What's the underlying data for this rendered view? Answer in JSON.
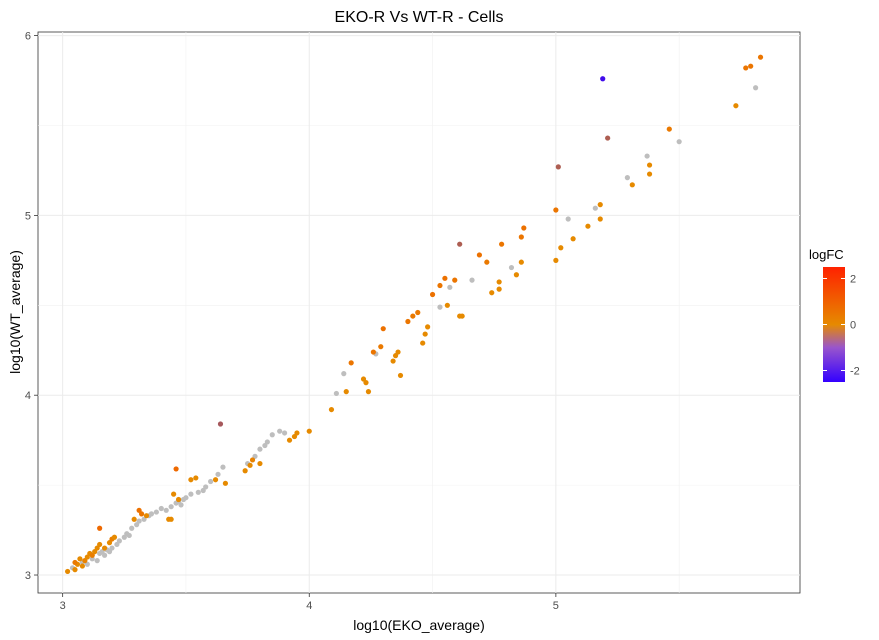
{
  "chart_data": {
    "type": "scatter",
    "title": "EKO-R Vs WT-R - Cells",
    "xlabel": "log10(EKO_average)",
    "ylabel": "log10(WT_average)",
    "xlim": [
      2.9,
      5.99
    ],
    "ylim": [
      2.9,
      6.02
    ],
    "x_ticks": [
      3,
      4,
      5
    ],
    "y_ticks": [
      3,
      4,
      5,
      6
    ],
    "x_tick_labels": [
      "3",
      "4",
      "5"
    ],
    "y_tick_labels": [
      "3",
      "4",
      "5",
      "6"
    ],
    "grid": true,
    "legend": {
      "title": "logFC",
      "placement": "right",
      "labels": [
        "2",
        "0",
        "-2"
      ],
      "values": [
        2,
        0,
        -2
      ],
      "range": [
        -2.5,
        2.5
      ],
      "colors": [
        "#3300ff",
        "#e68a00",
        "#ff2200"
      ]
    },
    "nonsignificant_color": "#bebebe",
    "points": [
      {
        "x": 3.02,
        "y": 3.02,
        "c": 0
      },
      {
        "x": 3.05,
        "y": 3.03,
        "c": 0
      },
      {
        "x": 3.06,
        "y": 3.06,
        "c": 0
      },
      {
        "x": 3.08,
        "y": 3.05,
        "c": 0
      },
      {
        "x": 3.09,
        "y": 3.08,
        "c": 0.2
      },
      {
        "x": 3.1,
        "y": 3.1,
        "c": 0
      },
      {
        "x": 3.11,
        "y": 3.12,
        "c": 0
      },
      {
        "x": 3.12,
        "y": 3.11,
        "c": 0.3
      },
      {
        "x": 3.13,
        "y": 3.13,
        "c": 0
      },
      {
        "x": 3.14,
        "y": 3.15,
        "c": 0
      },
      {
        "x": 3.05,
        "y": 3.07,
        "c": 0.4
      },
      {
        "x": 3.07,
        "y": 3.09,
        "c": 0
      },
      {
        "x": 3.15,
        "y": 3.26,
        "c": 0.8
      },
      {
        "x": 3.15,
        "y": 3.17,
        "c": 0
      },
      {
        "x": 3.17,
        "y": 3.15,
        "c": 0
      },
      {
        "x": 3.19,
        "y": 3.18,
        "c": 0
      },
      {
        "x": 3.2,
        "y": 3.2,
        "c": 0.3
      },
      {
        "x": 3.21,
        "y": 3.21,
        "c": 0
      },
      {
        "x": 3.29,
        "y": 3.31,
        "c": 0
      },
      {
        "x": 3.31,
        "y": 3.36,
        "c": 0.6
      },
      {
        "x": 3.32,
        "y": 3.34,
        "c": 0.5
      },
      {
        "x": 3.34,
        "y": 3.33,
        "c": 0
      },
      {
        "x": 3.43,
        "y": 3.31,
        "c": 0
      },
      {
        "x": 3.44,
        "y": 3.31,
        "c": 0
      },
      {
        "x": 3.45,
        "y": 3.45,
        "c": 0
      },
      {
        "x": 3.46,
        "y": 3.59,
        "c": 0.8
      },
      {
        "x": 3.47,
        "y": 3.42,
        "c": 0
      },
      {
        "x": 3.52,
        "y": 3.53,
        "c": 0
      },
      {
        "x": 3.54,
        "y": 3.54,
        "c": 0
      },
      {
        "x": 3.62,
        "y": 3.53,
        "c": 0
      },
      {
        "x": 3.64,
        "y": 3.84,
        "c": -0.9
      },
      {
        "x": 3.66,
        "y": 3.51,
        "c": 0
      },
      {
        "x": 3.74,
        "y": 3.58,
        "c": 0
      },
      {
        "x": 3.76,
        "y": 3.61,
        "c": 0
      },
      {
        "x": 3.77,
        "y": 3.64,
        "c": 0.2
      },
      {
        "x": 3.8,
        "y": 3.62,
        "c": 0
      },
      {
        "x": 3.92,
        "y": 3.75,
        "c": 0
      },
      {
        "x": 3.94,
        "y": 3.77,
        "c": 0
      },
      {
        "x": 3.95,
        "y": 3.79,
        "c": 0
      },
      {
        "x": 4.0,
        "y": 3.8,
        "c": 0
      },
      {
        "x": 4.09,
        "y": 3.92,
        "c": 0
      },
      {
        "x": 4.15,
        "y": 4.02,
        "c": 0
      },
      {
        "x": 4.17,
        "y": 4.18,
        "c": 0.5
      },
      {
        "x": 4.22,
        "y": 4.09,
        "c": 0
      },
      {
        "x": 4.23,
        "y": 4.07,
        "c": 0
      },
      {
        "x": 4.24,
        "y": 4.02,
        "c": 0
      },
      {
        "x": 4.26,
        "y": 4.24,
        "c": 0.5
      },
      {
        "x": 4.29,
        "y": 4.27,
        "c": 0.4
      },
      {
        "x": 4.3,
        "y": 4.37,
        "c": 0.6
      },
      {
        "x": 4.34,
        "y": 4.19,
        "c": 0
      },
      {
        "x": 4.35,
        "y": 4.22,
        "c": 0
      },
      {
        "x": 4.36,
        "y": 4.24,
        "c": 0
      },
      {
        "x": 4.37,
        "y": 4.11,
        "c": 0
      },
      {
        "x": 4.4,
        "y": 4.41,
        "c": 0.5
      },
      {
        "x": 4.42,
        "y": 4.44,
        "c": 0.4
      },
      {
        "x": 4.44,
        "y": 4.46,
        "c": 0.4
      },
      {
        "x": 4.46,
        "y": 4.29,
        "c": 0
      },
      {
        "x": 4.47,
        "y": 4.34,
        "c": 0
      },
      {
        "x": 4.48,
        "y": 4.38,
        "c": 0
      },
      {
        "x": 4.5,
        "y": 4.56,
        "c": 0.6
      },
      {
        "x": 4.53,
        "y": 4.61,
        "c": 0.5
      },
      {
        "x": 4.55,
        "y": 4.65,
        "c": 0.6
      },
      {
        "x": 4.56,
        "y": 4.5,
        "c": 0
      },
      {
        "x": 4.59,
        "y": 4.64,
        "c": 0.5
      },
      {
        "x": 4.61,
        "y": 4.44,
        "c": 0
      },
      {
        "x": 4.62,
        "y": 4.44,
        "c": 0
      },
      {
        "x": 4.61,
        "y": 4.84,
        "c": -0.8
      },
      {
        "x": 4.69,
        "y": 4.78,
        "c": 0.6
      },
      {
        "x": 4.72,
        "y": 4.74,
        "c": 0.4
      },
      {
        "x": 4.74,
        "y": 4.57,
        "c": 0
      },
      {
        "x": 4.77,
        "y": 4.59,
        "c": 0
      },
      {
        "x": 4.77,
        "y": 4.63,
        "c": 0
      },
      {
        "x": 4.78,
        "y": 4.84,
        "c": 0.5
      },
      {
        "x": 4.84,
        "y": 4.67,
        "c": 0
      },
      {
        "x": 4.86,
        "y": 4.74,
        "c": 0
      },
      {
        "x": 4.86,
        "y": 4.88,
        "c": 0.5
      },
      {
        "x": 4.87,
        "y": 4.93,
        "c": 0.6
      },
      {
        "x": 5.0,
        "y": 4.75,
        "c": 0
      },
      {
        "x": 5.0,
        "y": 5.03,
        "c": 0.5
      },
      {
        "x": 5.01,
        "y": 5.27,
        "c": -0.8
      },
      {
        "x": 5.02,
        "y": 4.82,
        "c": 0
      },
      {
        "x": 5.07,
        "y": 4.87,
        "c": 0
      },
      {
        "x": 5.13,
        "y": 4.94,
        "c": 0
      },
      {
        "x": 5.18,
        "y": 4.98,
        "c": 0
      },
      {
        "x": 5.18,
        "y": 5.06,
        "c": 0
      },
      {
        "x": 5.19,
        "y": 5.76,
        "c": -2.3
      },
      {
        "x": 5.21,
        "y": 5.43,
        "c": -0.8
      },
      {
        "x": 5.31,
        "y": 5.17,
        "c": 0
      },
      {
        "x": 5.38,
        "y": 5.23,
        "c": 0
      },
      {
        "x": 5.38,
        "y": 5.28,
        "c": 0
      },
      {
        "x": 5.46,
        "y": 5.48,
        "c": 0.4
      },
      {
        "x": 5.73,
        "y": 5.61,
        "c": 0
      },
      {
        "x": 5.77,
        "y": 5.82,
        "c": 0.5
      },
      {
        "x": 5.79,
        "y": 5.83,
        "c": 0.5
      },
      {
        "x": 5.83,
        "y": 5.88,
        "c": 0.5
      },
      {
        "x": 3.04,
        "y": 3.04,
        "c": null
      },
      {
        "x": 3.08,
        "y": 3.07,
        "c": null
      },
      {
        "x": 3.1,
        "y": 3.06,
        "c": null
      },
      {
        "x": 3.12,
        "y": 3.09,
        "c": null
      },
      {
        "x": 3.14,
        "y": 3.08,
        "c": null
      },
      {
        "x": 3.15,
        "y": 3.12,
        "c": null
      },
      {
        "x": 3.16,
        "y": 3.13,
        "c": null
      },
      {
        "x": 3.17,
        "y": 3.11,
        "c": null
      },
      {
        "x": 3.18,
        "y": 3.14,
        "c": null
      },
      {
        "x": 3.19,
        "y": 3.13,
        "c": null
      },
      {
        "x": 3.2,
        "y": 3.15,
        "c": null
      },
      {
        "x": 3.22,
        "y": 3.17,
        "c": null
      },
      {
        "x": 3.23,
        "y": 3.19,
        "c": null
      },
      {
        "x": 3.25,
        "y": 3.21,
        "c": null
      },
      {
        "x": 3.26,
        "y": 3.23,
        "c": null
      },
      {
        "x": 3.27,
        "y": 3.22,
        "c": null
      },
      {
        "x": 3.28,
        "y": 3.26,
        "c": null
      },
      {
        "x": 3.3,
        "y": 3.28,
        "c": null
      },
      {
        "x": 3.31,
        "y": 3.3,
        "c": null
      },
      {
        "x": 3.33,
        "y": 3.31,
        "c": null
      },
      {
        "x": 3.35,
        "y": 3.33,
        "c": null
      },
      {
        "x": 3.36,
        "y": 3.34,
        "c": null
      },
      {
        "x": 3.38,
        "y": 3.35,
        "c": null
      },
      {
        "x": 3.4,
        "y": 3.37,
        "c": null
      },
      {
        "x": 3.42,
        "y": 3.36,
        "c": null
      },
      {
        "x": 3.44,
        "y": 3.38,
        "c": null
      },
      {
        "x": 3.46,
        "y": 3.4,
        "c": null
      },
      {
        "x": 3.47,
        "y": 3.41,
        "c": null
      },
      {
        "x": 3.48,
        "y": 3.39,
        "c": null
      },
      {
        "x": 3.49,
        "y": 3.42,
        "c": null
      },
      {
        "x": 3.5,
        "y": 3.43,
        "c": null
      },
      {
        "x": 3.52,
        "y": 3.45,
        "c": null
      },
      {
        "x": 3.55,
        "y": 3.46,
        "c": null
      },
      {
        "x": 3.57,
        "y": 3.47,
        "c": null
      },
      {
        "x": 3.58,
        "y": 3.49,
        "c": null
      },
      {
        "x": 3.6,
        "y": 3.52,
        "c": null
      },
      {
        "x": 3.63,
        "y": 3.56,
        "c": null
      },
      {
        "x": 3.65,
        "y": 3.6,
        "c": null
      },
      {
        "x": 3.75,
        "y": 3.62,
        "c": null
      },
      {
        "x": 3.78,
        "y": 3.66,
        "c": null
      },
      {
        "x": 3.8,
        "y": 3.7,
        "c": null
      },
      {
        "x": 3.82,
        "y": 3.72,
        "c": null
      },
      {
        "x": 3.83,
        "y": 3.74,
        "c": null
      },
      {
        "x": 3.85,
        "y": 3.78,
        "c": null
      },
      {
        "x": 3.88,
        "y": 3.8,
        "c": null
      },
      {
        "x": 3.9,
        "y": 3.79,
        "c": null
      },
      {
        "x": 4.11,
        "y": 4.01,
        "c": null
      },
      {
        "x": 4.14,
        "y": 4.12,
        "c": null
      },
      {
        "x": 4.27,
        "y": 4.23,
        "c": null
      },
      {
        "x": 4.53,
        "y": 4.49,
        "c": null
      },
      {
        "x": 4.57,
        "y": 4.6,
        "c": null
      },
      {
        "x": 4.66,
        "y": 4.64,
        "c": null
      },
      {
        "x": 4.82,
        "y": 4.71,
        "c": null
      },
      {
        "x": 5.05,
        "y": 4.98,
        "c": null
      },
      {
        "x": 5.16,
        "y": 5.04,
        "c": null
      },
      {
        "x": 5.29,
        "y": 5.21,
        "c": null
      },
      {
        "x": 5.37,
        "y": 5.33,
        "c": null
      },
      {
        "x": 5.5,
        "y": 5.41,
        "c": null
      },
      {
        "x": 5.81,
        "y": 5.71,
        "c": null
      }
    ]
  }
}
